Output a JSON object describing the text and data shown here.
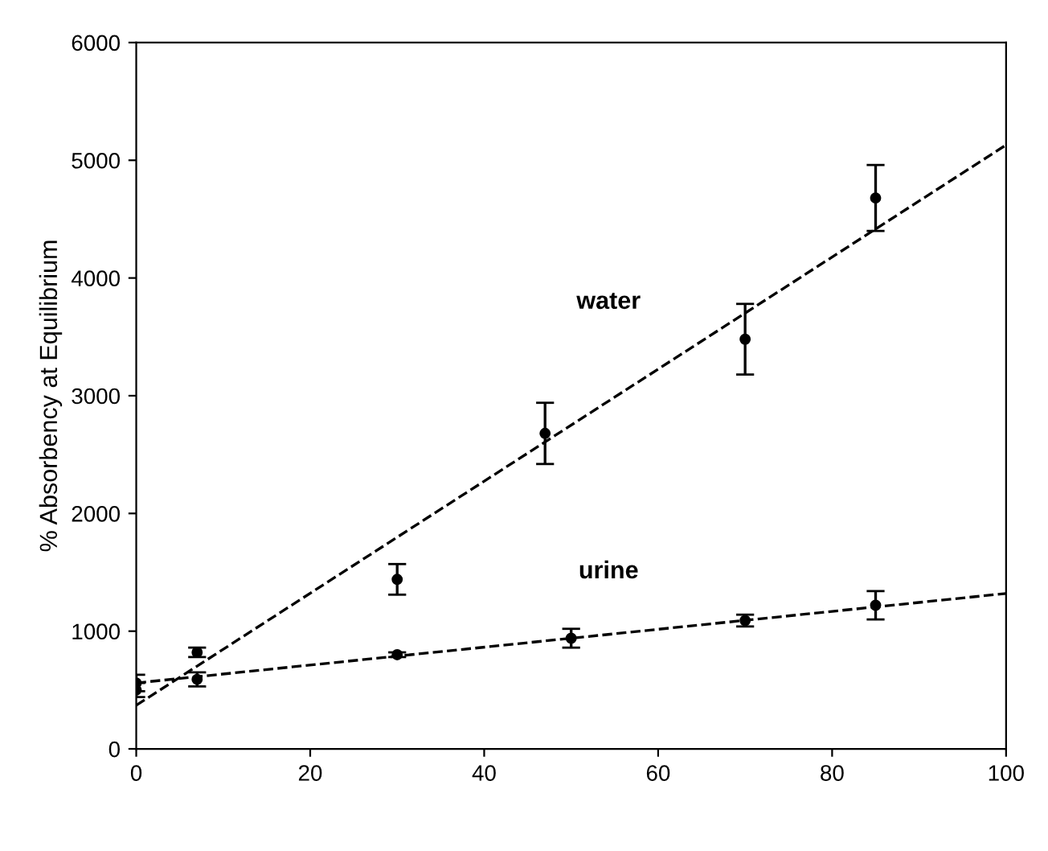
{
  "chart_data": {
    "type": "scatter",
    "ylabel": "% Absorbency at Equilibrium",
    "xlim": [
      0,
      100
    ],
    "ylim": [
      0,
      6000
    ],
    "xticks": [
      0,
      20,
      40,
      60,
      80,
      100
    ],
    "yticks": [
      0,
      1000,
      2000,
      3000,
      4000,
      5000,
      6000
    ],
    "grid": false,
    "legend": false,
    "series": [
      {
        "marker": "circle",
        "color": "#000000",
        "x": [
          0,
          7,
          30,
          47,
          70,
          85
        ],
        "values": [
          500,
          820,
          1440,
          2680,
          3480,
          4680
        ],
        "errors": [
          60,
          40,
          130,
          260,
          300,
          280
        ]
      },
      {
        "marker": "circle",
        "color": "#000000",
        "x": [
          0,
          7,
          30,
          50,
          70,
          85
        ],
        "values": [
          560,
          590,
          800,
          940,
          1090,
          1220
        ],
        "errors": [
          70,
          60,
          20,
          80,
          50,
          120
        ]
      },
      {
        "type": "line",
        "marker": "none",
        "name": "water",
        "color": "#000000",
        "line_style": "dashed",
        "x": [
          0,
          100
        ],
        "values": [
          370,
          5130
        ]
      },
      {
        "type": "line",
        "marker": "none",
        "name": "urine",
        "color": "#000000",
        "line_style": "dashed",
        "x": [
          0,
          100
        ],
        "values": [
          560,
          1320
        ]
      }
    ]
  }
}
